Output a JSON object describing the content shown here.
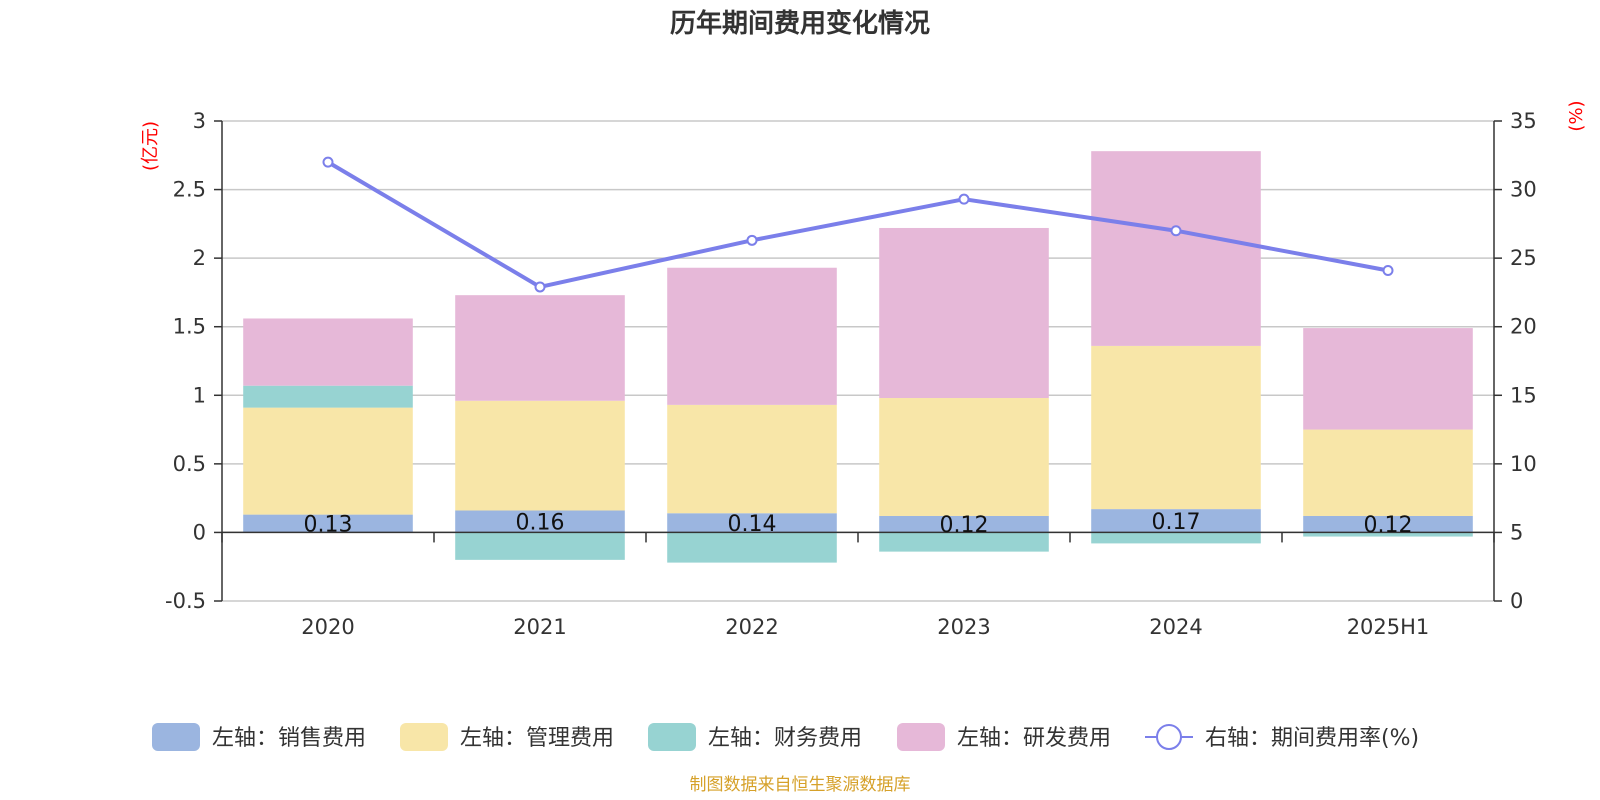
{
  "chart_data": {
    "type": "bar",
    "title": "历年期间费用变化情况",
    "categories": [
      "2020",
      "2021",
      "2022",
      "2023",
      "2024",
      "2025H1"
    ],
    "left_axis": {
      "unit": "(亿元)",
      "ylim": [
        -0.5,
        3
      ],
      "ticks": [
        "3",
        "2.5",
        "2",
        "1.5",
        "1",
        "0.5",
        "0",
        "-0.5"
      ]
    },
    "right_axis": {
      "unit": "(%)",
      "ylim": [
        0,
        35
      ],
      "ticks": [
        "35",
        "30",
        "25",
        "20",
        "15",
        "10",
        "5",
        "0"
      ]
    },
    "series": [
      {
        "name": "左轴：销售费用",
        "axis": "left",
        "type": "bar",
        "stack": "total",
        "color": "#9BB5E0",
        "values": [
          0.13,
          0.16,
          0.14,
          0.12,
          0.17,
          0.12
        ]
      },
      {
        "name": "左轴：管理费用",
        "axis": "left",
        "type": "bar",
        "stack": "total",
        "color": "#F8E6A8",
        "values": [
          0.78,
          0.8,
          0.79,
          0.86,
          1.19,
          0.63
        ]
      },
      {
        "name": "左轴：财务费用",
        "axis": "left",
        "type": "bar",
        "stack": "total",
        "color": "#97D3D2",
        "values": [
          0.16,
          -0.2,
          -0.22,
          -0.14,
          -0.08,
          -0.03
        ]
      },
      {
        "name": "左轴：研发费用",
        "axis": "left",
        "type": "bar",
        "stack": "total",
        "color": "#E6B8D8",
        "values": [
          0.49,
          0.77,
          1.0,
          1.24,
          1.42,
          0.74
        ]
      },
      {
        "name": "右轴：期间费用率(%)",
        "axis": "right",
        "type": "line",
        "color": "#7B7FEA",
        "values": [
          32,
          22.9,
          26.3,
          29.3,
          27,
          24.1
        ]
      }
    ],
    "data_labels": {
      "series_index": 0,
      "labels": [
        "0.13",
        "0.16",
        "0.14",
        "0.12",
        "0.17",
        "0.12"
      ]
    },
    "grid": true,
    "legend": "bottom-center",
    "colors": {
      "axis": "#333333",
      "grid": "#C8C8C8",
      "unit_text": "#FF0000",
      "source_text": "#D6A12A"
    }
  },
  "footer": {
    "source": "制图数据来自恒生聚源数据库"
  }
}
